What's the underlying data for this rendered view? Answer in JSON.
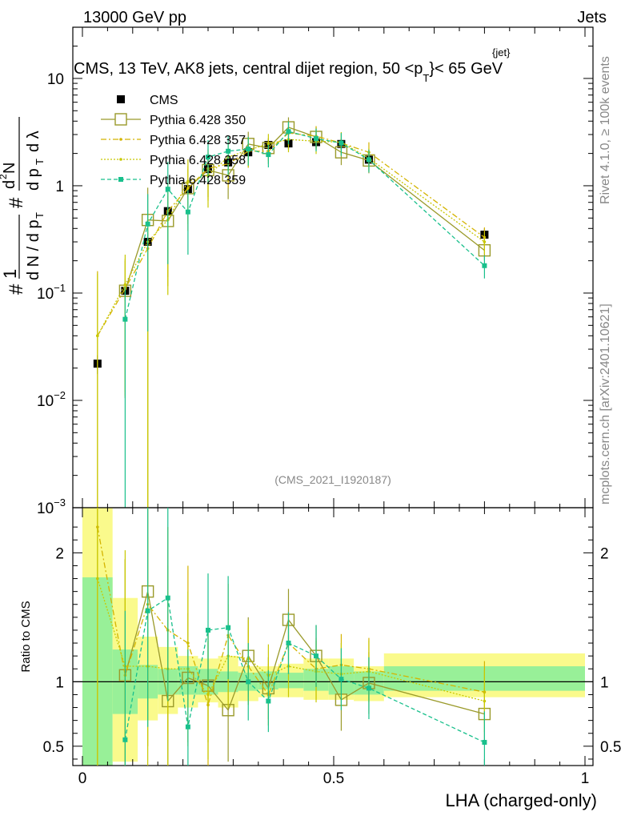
{
  "header": {
    "left": "13000 GeV pp",
    "right": "Jets",
    "subtitle": "CMS, 13 TeV, AK8 jets, central dijet region, 50 <p",
    "subtitle_sup": "{jet}",
    "subtitle_sub": "T",
    "subtitle_end": "}< 65 GeV"
  },
  "side": {
    "rivet": "Rivet 4.1.0, ≥ 100k events",
    "mcplots": "mcplots.cern.ch [arXiv:2401.10621]"
  },
  "watermark": "(CMS_2021_I1920187)",
  "ylabel": {
    "hash1": "#",
    "one": "1",
    "denom": "d N / d p",
    "denom_sub": "T",
    "hash2": "#",
    "num": "d",
    "num_sup": "2",
    "num_end": "N",
    "den2": "d p",
    "den2_sub": "T",
    "den2_end": "d λ"
  },
  "ratio_ylabel": "Ratio to CMS",
  "xlabel": "LHA (charged-only)",
  "colors": {
    "cms": "#000000",
    "p350": "#9a9a2a",
    "p357": "#d4b400",
    "p358": "#c8c800",
    "p359": "#19c08c",
    "band_inner": "#98f098",
    "band_outer": "#fafa8c"
  },
  "chart_data": {
    "type": "scatter",
    "xlim": [
      0,
      1
    ],
    "main_ylim": [
      0.001,
      30
    ],
    "main_yscale": "log",
    "ratio_ylim": [
      0.35,
      2.35
    ],
    "x_ticks": [
      {
        "v": 0,
        "label": "0"
      },
      {
        "v": 0.5,
        "label": "0.5"
      },
      {
        "v": 1,
        "label": "1"
      }
    ],
    "main_y_ticks": [
      {
        "v": 0.001,
        "base": "10",
        "exp": "−3"
      },
      {
        "v": 0.01,
        "base": "10",
        "exp": "−2"
      },
      {
        "v": 0.1,
        "base": "10",
        "exp": "−1"
      },
      {
        "v": 1,
        "base": "1",
        "exp": ""
      },
      {
        "v": 10,
        "base": "10",
        "exp": ""
      }
    ],
    "ratio_y_ticks": [
      {
        "v": 0.5,
        "label": "0.5"
      },
      {
        "v": 1,
        "label": "1"
      },
      {
        "v": 2,
        "label": "2"
      }
    ],
    "bins": [
      [
        0,
        0.06
      ],
      [
        0.06,
        0.11
      ],
      [
        0.11,
        0.15
      ],
      [
        0.15,
        0.19
      ],
      [
        0.19,
        0.23
      ],
      [
        0.23,
        0.27
      ],
      [
        0.27,
        0.31
      ],
      [
        0.31,
        0.35
      ],
      [
        0.35,
        0.39
      ],
      [
        0.39,
        0.44
      ],
      [
        0.44,
        0.49
      ],
      [
        0.49,
        0.54
      ],
      [
        0.54,
        0.6
      ],
      [
        0.6,
        1.0
      ]
    ],
    "band_inner": [
      [
        0.0,
        1.81
      ],
      [
        0.75,
        1.25
      ],
      [
        0.87,
        1.13
      ],
      [
        0.9,
        1.1
      ],
      [
        0.9,
        1.12
      ],
      [
        0.9,
        1.1
      ],
      [
        0.92,
        1.08
      ],
      [
        0.93,
        1.07
      ],
      [
        0.94,
        1.08
      ],
      [
        0.95,
        1.07
      ],
      [
        0.93,
        1.1
      ],
      [
        0.9,
        1.12
      ],
      [
        0.9,
        1.08
      ],
      [
        0.93,
        1.12
      ]
    ],
    "band_outer": [
      [
        0.0,
        2.35
      ],
      [
        0.38,
        1.65
      ],
      [
        0.7,
        1.35
      ],
      [
        0.75,
        1.27
      ],
      [
        0.8,
        1.2
      ],
      [
        0.84,
        1.18
      ],
      [
        0.8,
        1.2
      ],
      [
        0.85,
        1.12
      ],
      [
        0.88,
        1.12
      ],
      [
        0.88,
        1.14
      ],
      [
        0.86,
        1.18
      ],
      [
        0.86,
        1.18
      ],
      [
        0.85,
        1.12
      ],
      [
        0.88,
        1.22
      ]
    ],
    "legend": [
      {
        "key": "cms",
        "label": "CMS"
      },
      {
        "key": "p350",
        "label": "Pythia 6.428 350"
      },
      {
        "key": "p357",
        "label": "Pythia 6.428 357"
      },
      {
        "key": "p358",
        "label": "Pythia 6.428 358"
      },
      {
        "key": "p359",
        "label": "Pythia 6.428 359"
      }
    ],
    "series": [
      {
        "key": "cms",
        "name": "CMS",
        "marker": "filled-square",
        "line": "none",
        "x": [
          0.03,
          0.085,
          0.13,
          0.17,
          0.21,
          0.25,
          0.29,
          0.33,
          0.37,
          0.41,
          0.465,
          0.515,
          0.57,
          0.8
        ],
        "y": [
          0.022,
          0.105,
          0.3,
          0.58,
          0.93,
          1.43,
          1.65,
          2.05,
          2.4,
          2.48,
          2.55,
          2.45,
          1.75,
          0.35
        ],
        "ratio": [
          1,
          1,
          1,
          1,
          1,
          1,
          1,
          1,
          1,
          1,
          1,
          1,
          1,
          1
        ],
        "err": [
          0.1,
          0.1,
          0.1,
          0.1,
          0.08,
          0.08,
          0.08,
          0.07,
          0.06,
          0.06,
          0.06,
          0.06,
          0.06,
          0.07
        ]
      },
      {
        "key": "p350",
        "name": "Pythia 6.428 350",
        "marker": "open-square",
        "line": "solid",
        "x": [
          0.085,
          0.13,
          0.17,
          0.21,
          0.25,
          0.29,
          0.33,
          0.37,
          0.41,
          0.465,
          0.515,
          0.57,
          0.8
        ],
        "y": [
          0.105,
          0.48,
          0.47,
          0.95,
          1.4,
          1.25,
          2.45,
          2.25,
          3.5,
          2.85,
          2.05,
          1.72,
          0.25
        ],
        "ratio": [
          1.05,
          1.7,
          0.85,
          1.03,
          0.97,
          0.78,
          1.2,
          0.95,
          1.48,
          1.2,
          0.86,
          0.99,
          0.75
        ],
        "err": [
          0.45,
          0.5,
          0.35,
          0.25,
          0.22,
          0.2,
          0.15,
          0.12,
          0.12,
          0.12,
          0.12,
          0.12,
          0.1
        ]
      },
      {
        "key": "p357",
        "name": "Pythia 6.428 357",
        "marker": "small-dot",
        "line": "dashdot",
        "x": [
          0.03,
          0.085,
          0.13,
          0.17,
          0.21,
          0.25,
          0.29,
          0.33,
          0.37,
          0.41,
          0.465,
          0.515,
          0.57,
          0.8
        ],
        "y": [
          0.04,
          0.11,
          0.26,
          0.58,
          0.95,
          1.45,
          1.6,
          2.1,
          2.1,
          3.1,
          2.9,
          2.5,
          2.05,
          0.33
        ],
        "ratio": [
          2.2,
          1.05,
          1.6,
          1.4,
          1.3,
          0.82,
          1.36,
          1.12,
          0.9,
          1.3,
          1.1,
          1.13,
          1.1,
          0.92
        ],
        "err": [
          1.5,
          0.45,
          0.55,
          0.4,
          0.3,
          0.25,
          0.2,
          0.15,
          0.12,
          0.12,
          0.12,
          0.12,
          0.12,
          0.12
        ]
      },
      {
        "key": "p358",
        "name": "Pythia 6.428 358",
        "marker": "small-dot",
        "line": "dotted",
        "x": [
          0.03,
          0.085,
          0.13,
          0.17,
          0.21,
          0.25,
          0.29,
          0.33,
          0.37,
          0.41,
          0.465,
          0.515,
          0.57,
          0.8
        ],
        "y": [
          0.04,
          0.12,
          0.3,
          0.48,
          1.1,
          1.25,
          1.85,
          2.15,
          2.45,
          2.7,
          2.6,
          2.55,
          1.8,
          0.3
        ],
        "ratio": [
          1.8,
          1.12,
          1.12,
          1.1,
          1.1,
          0.9,
          1.2,
          1.18,
          1.05,
          1.12,
          1.08,
          1.06,
          1.08,
          0.85
        ],
        "err": [
          1.4,
          0.45,
          0.5,
          0.4,
          0.3,
          0.25,
          0.2,
          0.15,
          0.12,
          0.12,
          0.12,
          0.12,
          0.12,
          0.12
        ]
      },
      {
        "key": "p359",
        "name": "Pythia 6.428 359",
        "marker": "filled-small-square",
        "line": "dashed",
        "x": [
          0.085,
          0.13,
          0.17,
          0.21,
          0.25,
          0.29,
          0.33,
          0.37,
          0.41,
          0.465,
          0.515,
          0.57,
          0.8
        ],
        "y": [
          0.057,
          0.44,
          0.93,
          0.57,
          1.85,
          2.1,
          2.2,
          1.95,
          3.2,
          2.75,
          2.5,
          1.75,
          0.18
        ],
        "ratio": [
          0.55,
          1.55,
          1.65,
          0.65,
          1.4,
          1.42,
          1.0,
          0.85,
          1.3,
          1.2,
          1.02,
          0.95,
          0.53
        ],
        "err": [
          0.5,
          0.45,
          0.4,
          0.3,
          0.22,
          0.2,
          0.15,
          0.12,
          0.12,
          0.12,
          0.12,
          0.12,
          0.12
        ]
      }
    ]
  }
}
